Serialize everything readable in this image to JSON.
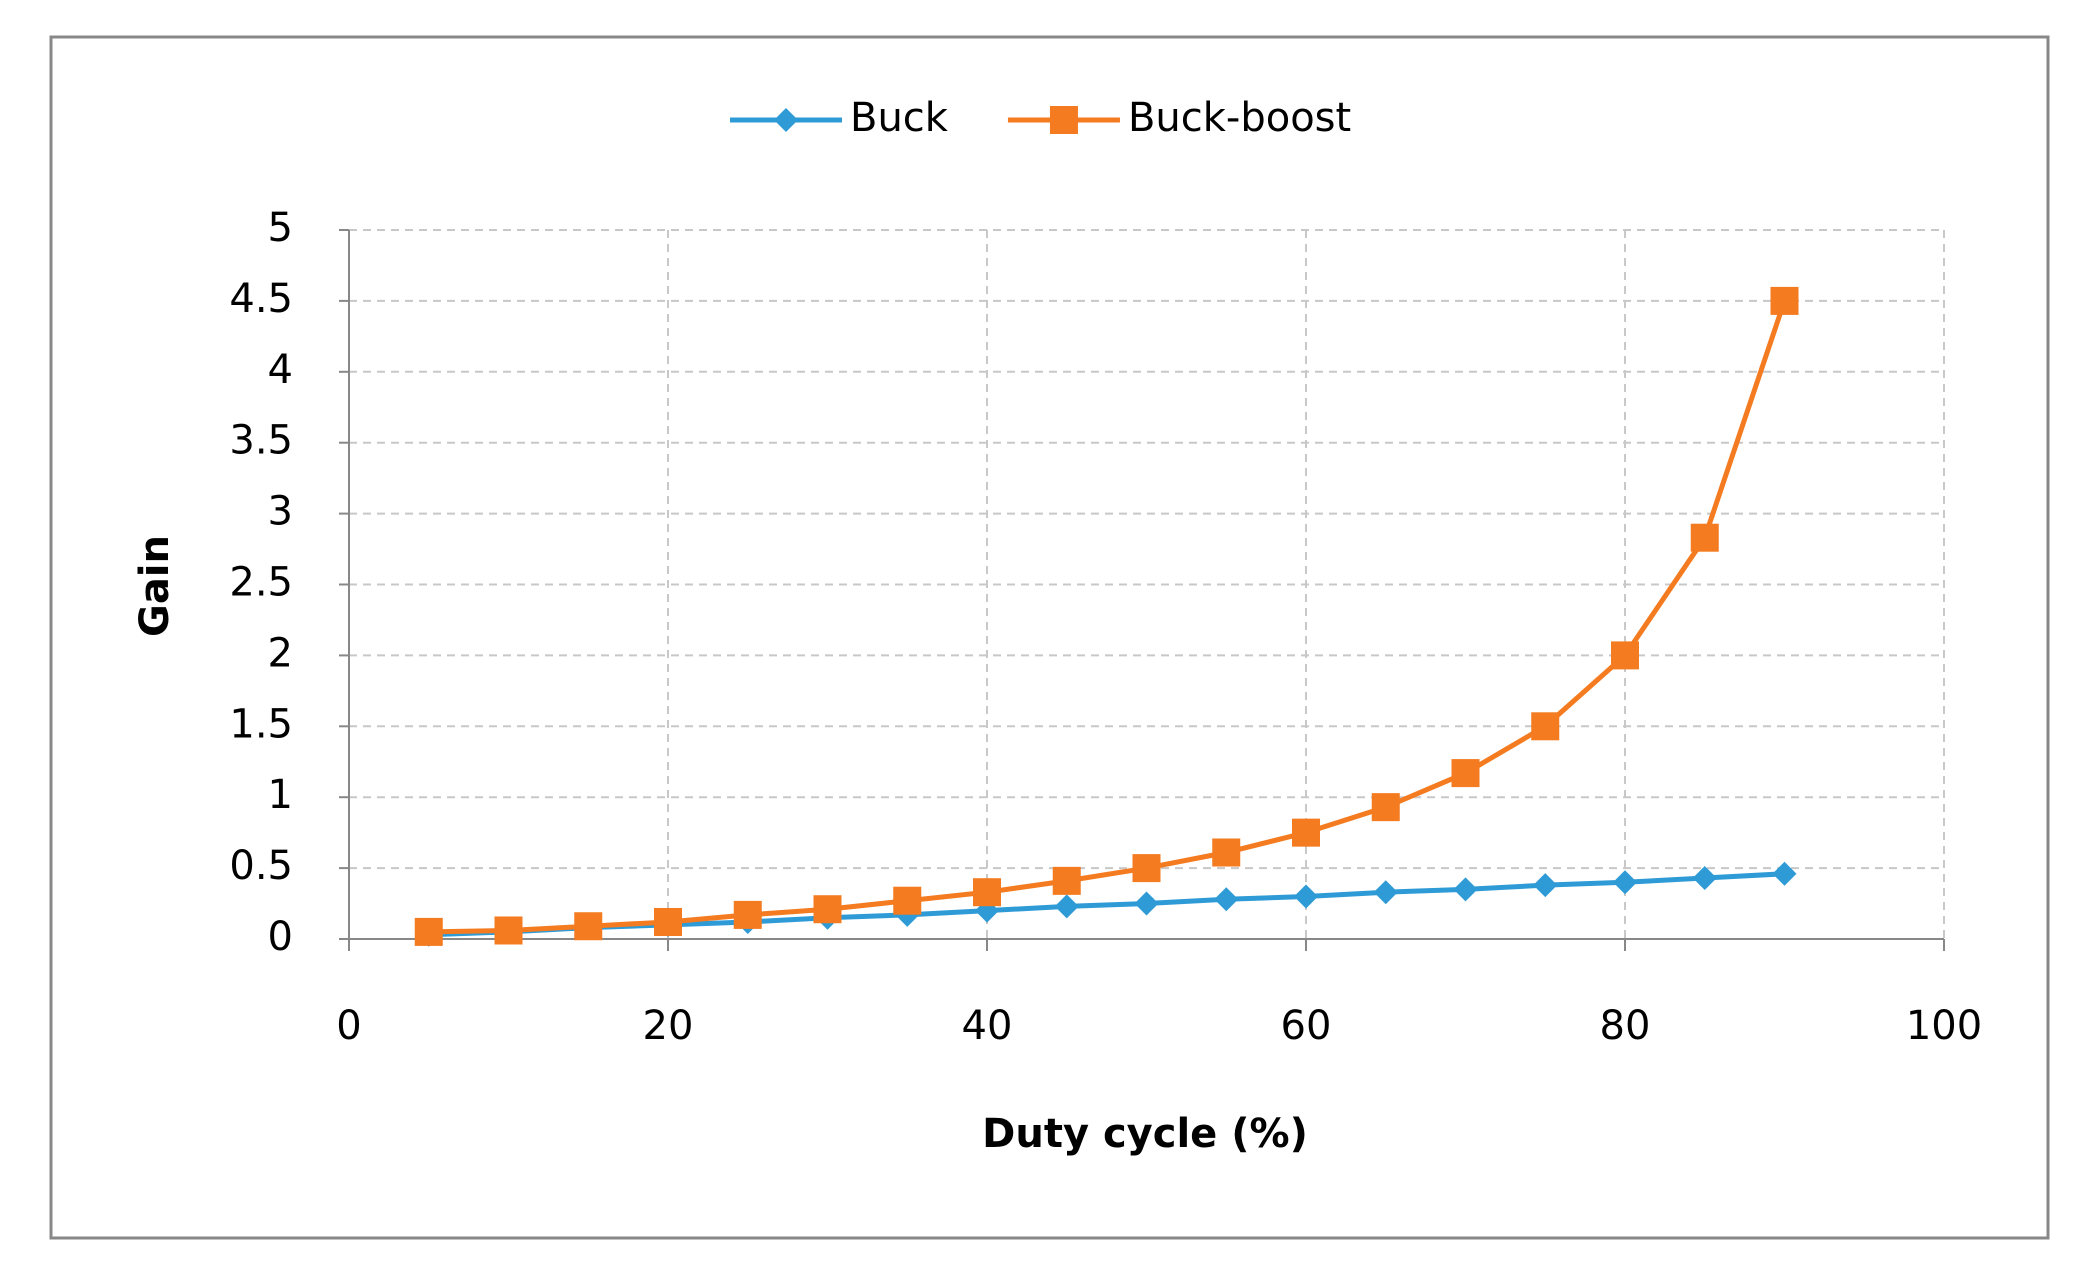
{
  "chart_data": {
    "type": "line",
    "x_label": "Duty cycle (%)",
    "y_label": "Gain",
    "x": [
      5,
      10,
      15,
      20,
      25,
      30,
      35,
      40,
      45,
      50,
      55,
      60,
      65,
      70,
      75,
      80,
      85,
      90
    ],
    "series": [
      {
        "name": "Buck",
        "color": "#2e9bd6",
        "marker": "diamond",
        "values": [
          0.03,
          0.05,
          0.08,
          0.1,
          0.12,
          0.15,
          0.17,
          0.2,
          0.23,
          0.25,
          0.28,
          0.3,
          0.33,
          0.35,
          0.38,
          0.4,
          0.43,
          0.46
        ]
      },
      {
        "name": "Buck-boost",
        "color": "#f47b20",
        "marker": "square",
        "values": [
          0.05,
          0.06,
          0.09,
          0.12,
          0.17,
          0.21,
          0.27,
          0.33,
          0.41,
          0.5,
          0.61,
          0.75,
          0.93,
          1.17,
          1.5,
          2,
          2.83,
          4.5
        ]
      }
    ],
    "xlim": [
      0,
      100
    ],
    "xticks": [
      0,
      20,
      40,
      60,
      80,
      100
    ],
    "ylim": [
      0,
      5
    ],
    "yticks": [
      0,
      0.5,
      1,
      1.5,
      2,
      2.5,
      3,
      3.5,
      4,
      4.5,
      5
    ],
    "grid": true,
    "legend": "top"
  }
}
